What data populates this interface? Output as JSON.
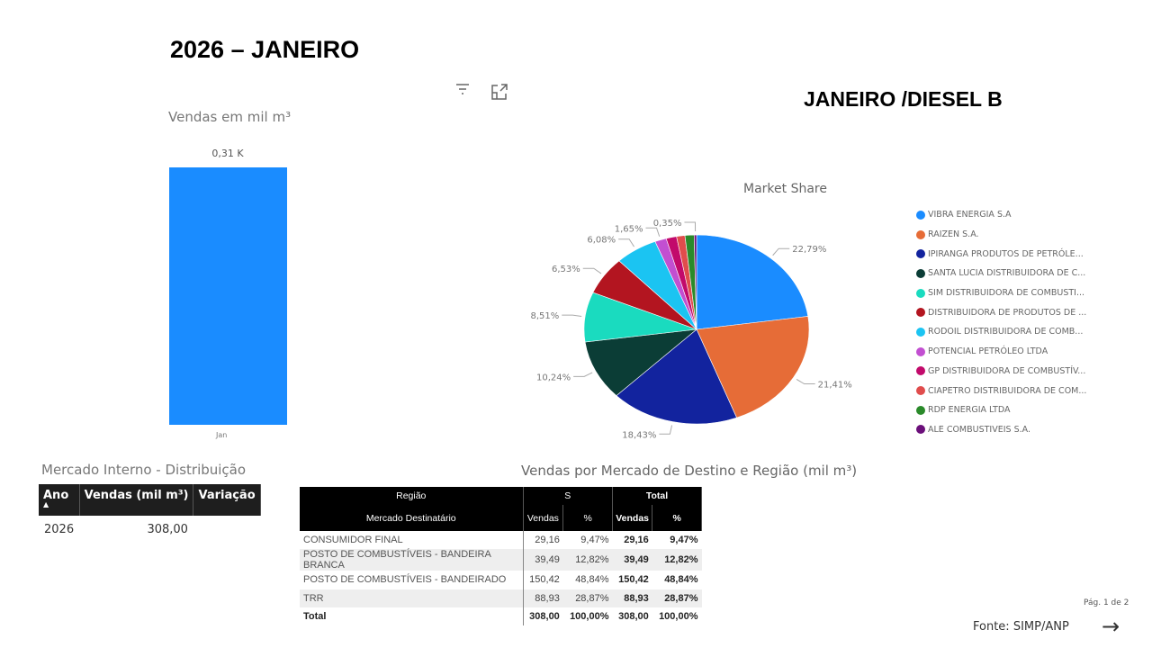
{
  "header": {
    "title": "2026 – JANEIRO",
    "subtitle": "JANEIRO /DIESEL B"
  },
  "toolbar": {
    "filter_icon": "filter-icon",
    "expand_icon": "focus-mode-icon"
  },
  "bar_chart": {
    "title": "Vendas  em mil m³",
    "data_label": "0,31 K",
    "x_label": "Jan",
    "value": 308.0
  },
  "chart_data": {
    "type": "pie",
    "title": "Market Share",
    "legend_position": "right",
    "series": [
      {
        "name": "VIBRA ENERGIA S.A",
        "value": 22.79,
        "label": "22,79%",
        "color": "#1a8cff"
      },
      {
        "name": "RAIZEN S.A.",
        "value": 21.41,
        "label": "21,41%",
        "color": "#e66c37"
      },
      {
        "name": "IPIRANGA PRODUTOS DE PETRÓLE...",
        "value": 18.43,
        "label": "18,43%",
        "color": "#12239e"
      },
      {
        "name": "SANTA LUCIA DISTRIBUIDORA DE C...",
        "value": 10.24,
        "label": "10,24%",
        "color": "#0b3d36"
      },
      {
        "name": "SIM DISTRIBUIDORA DE COMBUSTI...",
        "value": 8.51,
        "label": "8,51%",
        "color": "#1adbbf"
      },
      {
        "name": "DISTRIBUIDORA DE PRODUTOS DE ...",
        "value": 6.53,
        "label": "6,53%",
        "color": "#b31520"
      },
      {
        "name": "RODOIL DISTRIBUIDORA DE COMB...",
        "value": 6.08,
        "label": "6,08%",
        "color": "#1bc4f2"
      },
      {
        "name": "POTENCIAL PETRÓLEO LTDA",
        "value": 1.65,
        "label": "1,65%",
        "color": "#c24fd1"
      },
      {
        "name": "GP DISTRIBUIDORA DE COMBUSTÍV...",
        "value": 1.5,
        "label": "",
        "color": "#c20a6b"
      },
      {
        "name": "CIAPETRO DISTRIBUIDORA DE COM...",
        "value": 1.2,
        "label": "",
        "color": "#e04c4c"
      },
      {
        "name": "RDP ENERGIA LTDA",
        "value": 1.31,
        "label": "",
        "color": "#2a8a2a"
      },
      {
        "name": "ALE COMBUSTIVEIS S.A.",
        "value": 0.35,
        "label": "0,35%",
        "color": "#6b0f7a"
      }
    ]
  },
  "mercado_interno": {
    "title": "Mercado Interno - Distribuição",
    "columns": [
      "Ano",
      "Vendas (mil m³)",
      "Variação"
    ],
    "rows": [
      [
        "2026",
        "308,00",
        ""
      ]
    ]
  },
  "vendas_destino": {
    "title": "Vendas por Mercado de Destino e Região (mil m³)",
    "header1": [
      "Região",
      "S",
      "Total"
    ],
    "header2": [
      "Mercado Destinatário",
      "Vendas",
      "%",
      "Vendas",
      "%"
    ],
    "rows": [
      [
        "CONSUMIDOR FINAL",
        "29,16",
        "9,47%",
        "29,16",
        "9,47%"
      ],
      [
        "POSTO DE COMBUSTÍVEIS - BANDEIRA BRANCA",
        "39,49",
        "12,82%",
        "39,49",
        "12,82%"
      ],
      [
        "POSTO DE COMBUSTÍVEIS - BANDEIRADO",
        "150,42",
        "48,84%",
        "150,42",
        "48,84%"
      ],
      [
        "TRR",
        "88,93",
        "28,87%",
        "88,93",
        "28,87%"
      ],
      [
        "Total",
        "308,00",
        "100,00%",
        "308,00",
        "100,00%"
      ]
    ]
  },
  "footer": {
    "source": "Fonte: SIMP/ANP",
    "page": "Pág. 1 de 2",
    "next_icon": "arrow-right-icon"
  }
}
